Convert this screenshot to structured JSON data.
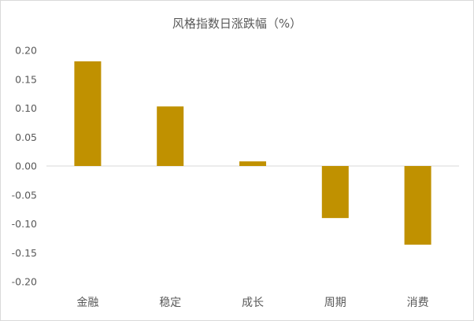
{
  "chart_data": {
    "type": "bar",
    "title": "风格指数日涨跌幅（%）",
    "categories": [
      "金融",
      "稳定",
      "成长",
      "周期",
      "消费"
    ],
    "values": [
      0.181,
      0.103,
      0.008,
      -0.09,
      -0.136
    ],
    "ylim": [
      -0.2,
      0.2
    ],
    "yticks": [
      "0.20",
      "0.15",
      "0.10",
      "0.05",
      "0.00",
      "-0.05",
      "-0.10",
      "-0.15",
      "-0.20"
    ],
    "grid": false,
    "legend": "none",
    "colors": {
      "bar": "#c09100",
      "axis": "#d9d9d9",
      "text": "#595959"
    }
  }
}
